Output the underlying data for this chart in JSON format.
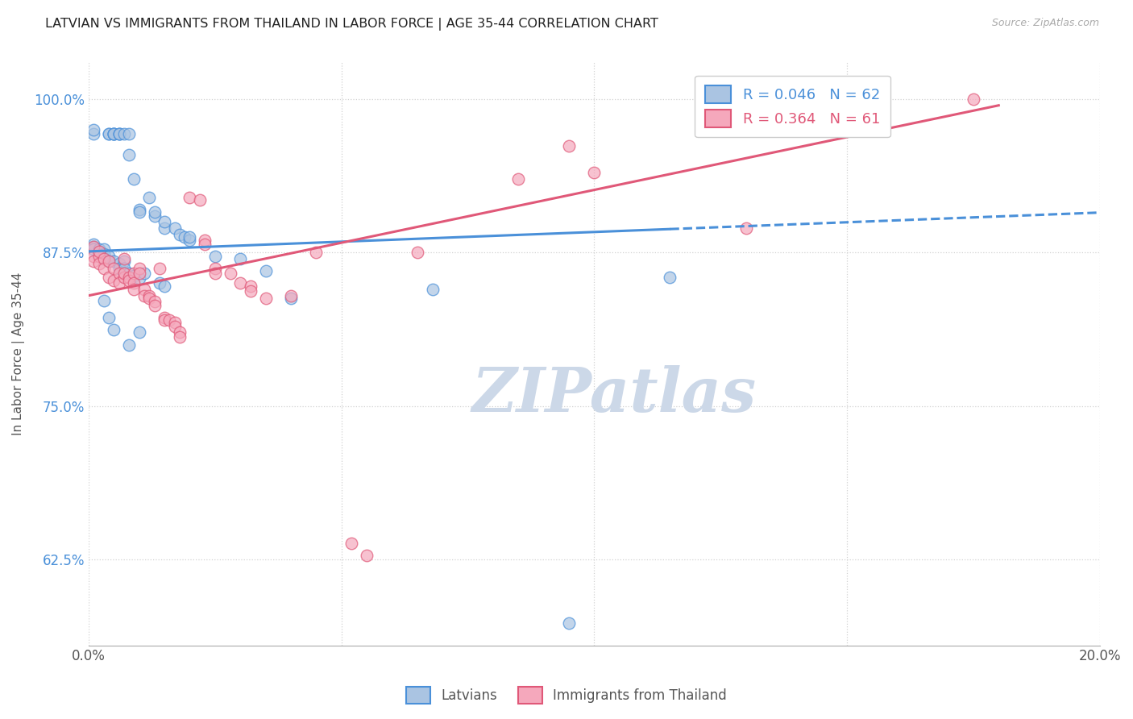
{
  "title": "LATVIAN VS IMMIGRANTS FROM THAILAND IN LABOR FORCE | AGE 35-44 CORRELATION CHART",
  "source": "Source: ZipAtlas.com",
  "ylabel": "In Labor Force | Age 35-44",
  "xlim": [
    0.0,
    0.2
  ],
  "ylim": [
    0.555,
    1.03
  ],
  "yticks": [
    0.625,
    0.75,
    0.875,
    1.0
  ],
  "ytick_labels": [
    "62.5%",
    "75.0%",
    "87.5%",
    "100.0%"
  ],
  "xticks": [
    0.0,
    0.05,
    0.1,
    0.15,
    0.2
  ],
  "xtick_labels": [
    "0.0%",
    "",
    "",
    "",
    "20.0%"
  ],
  "legend_R_blue": "R = 0.046",
  "legend_N_blue": "N = 62",
  "legend_R_pink": "R = 0.364",
  "legend_N_pink": "N = 61",
  "blue_color": "#aac4e2",
  "pink_color": "#f5a8bc",
  "blue_line_color": "#4a90d9",
  "pink_line_color": "#e05878",
  "blue_line": [
    0.0,
    0.876,
    0.12,
    0.895
  ],
  "pink_line": [
    0.0,
    0.84,
    0.18,
    0.995
  ],
  "blue_scatter": [
    [
      0.001,
      0.972
    ],
    [
      0.001,
      0.975
    ],
    [
      0.004,
      0.972
    ],
    [
      0.004,
      0.972
    ],
    [
      0.005,
      0.972
    ],
    [
      0.005,
      0.972
    ],
    [
      0.005,
      0.972
    ],
    [
      0.005,
      0.972
    ],
    [
      0.006,
      0.972
    ],
    [
      0.006,
      0.972
    ],
    [
      0.006,
      0.972
    ],
    [
      0.007,
      0.972
    ],
    [
      0.008,
      0.972
    ],
    [
      0.008,
      0.955
    ],
    [
      0.009,
      0.935
    ],
    [
      0.01,
      0.91
    ],
    [
      0.01,
      0.908
    ],
    [
      0.012,
      0.92
    ],
    [
      0.013,
      0.905
    ],
    [
      0.013,
      0.908
    ],
    [
      0.015,
      0.895
    ],
    [
      0.015,
      0.9
    ],
    [
      0.017,
      0.895
    ],
    [
      0.018,
      0.89
    ],
    [
      0.019,
      0.888
    ],
    [
      0.02,
      0.885
    ],
    [
      0.02,
      0.888
    ],
    [
      0.001,
      0.88
    ],
    [
      0.001,
      0.882
    ],
    [
      0.001,
      0.878
    ],
    [
      0.002,
      0.878
    ],
    [
      0.002,
      0.876
    ],
    [
      0.002,
      0.874
    ],
    [
      0.003,
      0.878
    ],
    [
      0.003,
      0.874
    ],
    [
      0.003,
      0.87
    ],
    [
      0.004,
      0.872
    ],
    [
      0.004,
      0.868
    ],
    [
      0.005,
      0.868
    ],
    [
      0.006,
      0.866
    ],
    [
      0.006,
      0.862
    ],
    [
      0.007,
      0.868
    ],
    [
      0.007,
      0.862
    ],
    [
      0.008,
      0.858
    ],
    [
      0.009,
      0.856
    ],
    [
      0.01,
      0.854
    ],
    [
      0.011,
      0.858
    ],
    [
      0.014,
      0.85
    ],
    [
      0.015,
      0.848
    ],
    [
      0.025,
      0.872
    ],
    [
      0.03,
      0.87
    ],
    [
      0.035,
      0.86
    ],
    [
      0.04,
      0.838
    ],
    [
      0.003,
      0.836
    ],
    [
      0.004,
      0.822
    ],
    [
      0.005,
      0.812
    ],
    [
      0.008,
      0.8
    ],
    [
      0.01,
      0.81
    ],
    [
      0.068,
      0.845
    ],
    [
      0.115,
      0.855
    ],
    [
      0.095,
      0.573
    ]
  ],
  "pink_scatter": [
    [
      0.001,
      0.88
    ],
    [
      0.001,
      0.872
    ],
    [
      0.001,
      0.868
    ],
    [
      0.002,
      0.872
    ],
    [
      0.002,
      0.866
    ],
    [
      0.002,
      0.876
    ],
    [
      0.003,
      0.87
    ],
    [
      0.003,
      0.862
    ],
    [
      0.004,
      0.868
    ],
    [
      0.004,
      0.855
    ],
    [
      0.005,
      0.862
    ],
    [
      0.005,
      0.852
    ],
    [
      0.006,
      0.858
    ],
    [
      0.006,
      0.85
    ],
    [
      0.007,
      0.87
    ],
    [
      0.007,
      0.855
    ],
    [
      0.007,
      0.858
    ],
    [
      0.008,
      0.855
    ],
    [
      0.008,
      0.852
    ],
    [
      0.009,
      0.858
    ],
    [
      0.009,
      0.85
    ],
    [
      0.009,
      0.845
    ],
    [
      0.01,
      0.862
    ],
    [
      0.01,
      0.858
    ],
    [
      0.011,
      0.845
    ],
    [
      0.011,
      0.84
    ],
    [
      0.012,
      0.84
    ],
    [
      0.012,
      0.838
    ],
    [
      0.013,
      0.835
    ],
    [
      0.013,
      0.832
    ],
    [
      0.014,
      0.862
    ],
    [
      0.015,
      0.822
    ],
    [
      0.015,
      0.82
    ],
    [
      0.016,
      0.82
    ],
    [
      0.017,
      0.818
    ],
    [
      0.017,
      0.815
    ],
    [
      0.018,
      0.81
    ],
    [
      0.018,
      0.806
    ],
    [
      0.02,
      0.92
    ],
    [
      0.022,
      0.918
    ],
    [
      0.023,
      0.885
    ],
    [
      0.023,
      0.882
    ],
    [
      0.025,
      0.862
    ],
    [
      0.025,
      0.858
    ],
    [
      0.028,
      0.858
    ],
    [
      0.03,
      0.85
    ],
    [
      0.032,
      0.848
    ],
    [
      0.032,
      0.844
    ],
    [
      0.035,
      0.838
    ],
    [
      0.04,
      0.84
    ],
    [
      0.045,
      0.875
    ],
    [
      0.052,
      0.638
    ],
    [
      0.055,
      0.628
    ],
    [
      0.065,
      0.875
    ],
    [
      0.085,
      0.935
    ],
    [
      0.095,
      0.962
    ],
    [
      0.1,
      0.94
    ],
    [
      0.13,
      0.895
    ],
    [
      0.175,
      1.0
    ]
  ],
  "background_color": "#ffffff",
  "grid_color": "#cccccc",
  "watermark_text": "ZIPatlas",
  "watermark_color": "#ccd8e8"
}
